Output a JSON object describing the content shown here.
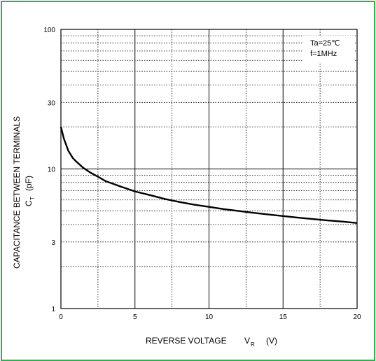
{
  "chart_data": {
    "type": "line",
    "xlabel": "REVERSE VOLTAGE",
    "xlabel_symbol": "V",
    "xlabel_subscript": "R",
    "xlabel_unit": "(V)",
    "ylabel": "CAPACITANCE BETWEEN TERMINALS",
    "ylabel_symbol": "C",
    "ylabel_subscript": "T",
    "ylabel_unit": "(pF)",
    "xlim": [
      0,
      20
    ],
    "ylim": [
      1,
      100
    ],
    "y_scale": "log",
    "grid": true,
    "x_ticks": [
      0,
      5,
      10,
      15,
      20
    ],
    "x_tick_labels": [
      "0",
      "5",
      "10",
      "15",
      "20"
    ],
    "y_ticks": [
      1,
      3,
      10,
      30,
      100
    ],
    "y_tick_labels": [
      "1",
      "3",
      "10",
      "30",
      "100"
    ],
    "annotations": [
      "Ta=25℃",
      "f=1MHz"
    ],
    "series": [
      {
        "x": [
          0,
          0.2,
          0.5,
          0.8,
          1,
          1.5,
          2,
          2.5,
          3,
          4,
          5,
          6,
          7,
          8,
          9,
          10,
          11,
          12,
          13,
          14,
          15,
          16,
          17,
          18,
          19,
          20
        ],
        "y": [
          20,
          16.5,
          13.5,
          12,
          11.4,
          10.2,
          9.4,
          8.8,
          8.2,
          7.5,
          6.9,
          6.5,
          6.1,
          5.8,
          5.55,
          5.35,
          5.15,
          5.0,
          4.85,
          4.72,
          4.6,
          4.48,
          4.38,
          4.28,
          4.2,
          4.1
        ]
      }
    ],
    "colors": {
      "frame": "#2bb24c",
      "line": "#000000",
      "grid": "#000000"
    }
  }
}
